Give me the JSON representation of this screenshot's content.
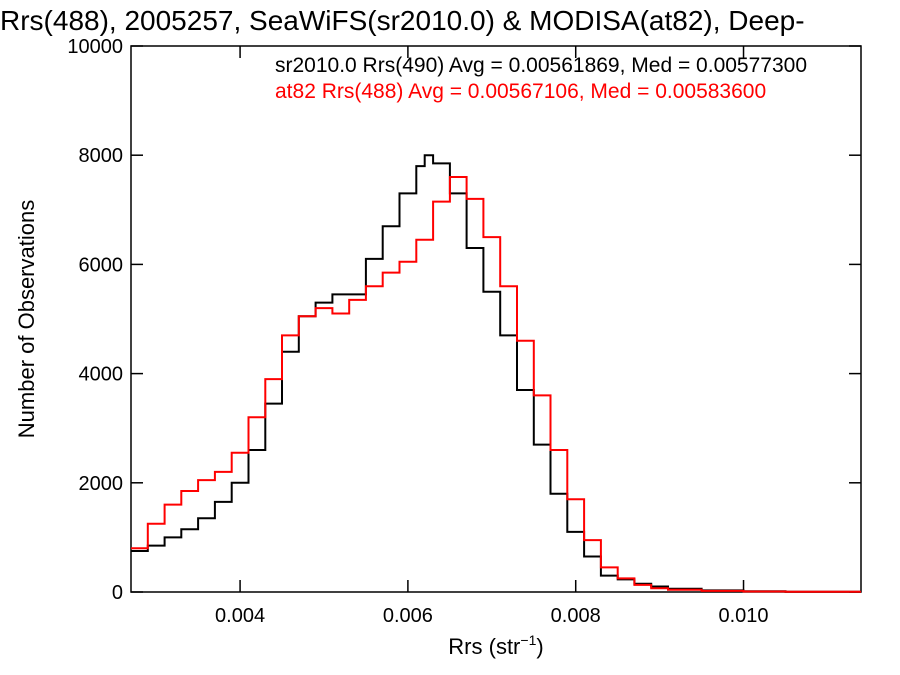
{
  "chart_data": {
    "type": "line",
    "title": "Rrs(488), 2005257, SeaWiFS(sr2010.0) & MODISA(at82), Deep-",
    "xlabel_main": "Rrs (str",
    "xlabel_sup": "−1",
    "xlabel_tail": ")",
    "ylabel": "Number of Observations",
    "xlim": [
      0.0027,
      0.0114
    ],
    "ylim": [
      0,
      10000
    ],
    "x_ticks": [
      0.004,
      0.006,
      0.008,
      0.01
    ],
    "x_tick_labels": [
      "0.004",
      "0.006",
      "0.008",
      "0.010"
    ],
    "y_ticks": [
      0,
      2000,
      4000,
      6000,
      8000,
      10000
    ],
    "y_tick_labels": [
      "0",
      "2000",
      "4000",
      "6000",
      "8000",
      "10000"
    ],
    "series": [
      {
        "name": "sr2010.0 Rrs(490) Avg = 0.00561869, Med = 0.00577300",
        "color": "#000000",
        "x": [
          0.0027,
          0.0029,
          0.0031,
          0.0033,
          0.0035,
          0.0037,
          0.0039,
          0.0041,
          0.0043,
          0.0045,
          0.0047,
          0.0049,
          0.0051,
          0.0053,
          0.0055,
          0.0057,
          0.0059,
          0.0061,
          0.0062,
          0.0063,
          0.0065,
          0.0067,
          0.0069,
          0.0071,
          0.0073,
          0.0075,
          0.0077,
          0.0079,
          0.0081,
          0.0083,
          0.0085,
          0.0087,
          0.0089,
          0.0091,
          0.0095,
          0.01,
          0.0105,
          0.0114
        ],
        "y": [
          750,
          850,
          1000,
          1150,
          1350,
          1650,
          2000,
          2600,
          3450,
          4400,
          5050,
          5300,
          5450,
          5450,
          6100,
          6700,
          7300,
          7800,
          8000,
          7850,
          7300,
          6300,
          5500,
          4700,
          3700,
          2700,
          1800,
          1100,
          650,
          300,
          230,
          150,
          100,
          60,
          30,
          15,
          5,
          5
        ]
      },
      {
        "name": "at82 Rrs(488) Avg = 0.00567106, Med = 0.00583600",
        "color": "#ff0000",
        "x": [
          0.0027,
          0.0029,
          0.0031,
          0.0033,
          0.0035,
          0.0037,
          0.0039,
          0.0041,
          0.0043,
          0.0045,
          0.0047,
          0.0049,
          0.0051,
          0.0053,
          0.0055,
          0.0057,
          0.0059,
          0.0061,
          0.0063,
          0.0065,
          0.0067,
          0.0069,
          0.0071,
          0.0073,
          0.0075,
          0.0077,
          0.0079,
          0.0081,
          0.0083,
          0.0085,
          0.0087,
          0.0089,
          0.0091,
          0.0095,
          0.01,
          0.0105,
          0.0114
        ],
        "y": [
          800,
          1250,
          1600,
          1850,
          2050,
          2200,
          2550,
          3200,
          3900,
          4700,
          5050,
          5200,
          5100,
          5350,
          5600,
          5850,
          6050,
          6450,
          7150,
          7600,
          7200,
          6500,
          5600,
          4600,
          3600,
          2600,
          1700,
          950,
          450,
          250,
          130,
          70,
          40,
          20,
          10,
          5,
          5
        ]
      }
    ],
    "legend_placement": "top-right",
    "grid": false
  }
}
